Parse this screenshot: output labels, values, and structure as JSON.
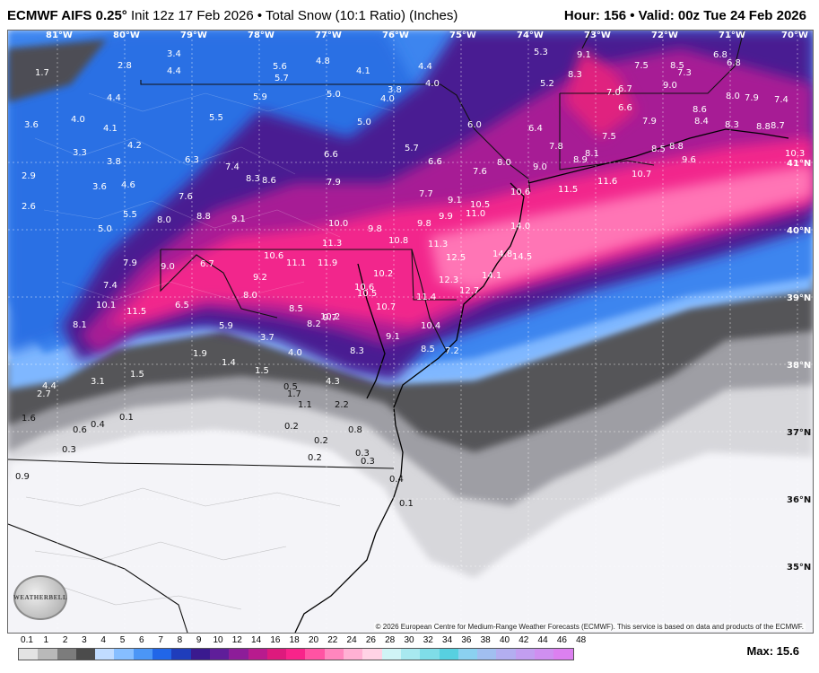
{
  "header": {
    "model": "ECMWF AIFS 0.25°",
    "init": "Init 12z 17 Feb 2026",
    "field": "• Total Snow (10:1 Ratio) (Inches)",
    "hour": "Hour: 156",
    "valid": "• Valid: 00z Tue 24 Feb 2026"
  },
  "longitudes": [
    "81°W",
    "80°W",
    "79°W",
    "78°W",
    "77°W",
    "76°W",
    "75°W",
    "74°W",
    "73°W",
    "72°W",
    "71°W",
    "70°W"
  ],
  "latitudes": [
    "41°N",
    "40°N",
    "39°N",
    "38°N",
    "37°N",
    "36°N",
    "35°N"
  ],
  "labels_light": [
    "1.7",
    "2.8",
    "3.4",
    "4.4",
    "4.4",
    "5.6",
    "5.7",
    "4.8",
    "4.1",
    "4.4",
    "4.0",
    "3.6",
    "4.0",
    "4.1",
    "5.5",
    "5.9",
    "5.0",
    "3.8",
    "4.0",
    "5.0",
    "3.3",
    "4.2",
    "3.8",
    "2.9",
    "3.6",
    "4.6",
    "2.6",
    "5.5",
    "5.0",
    "5.7",
    "6.0",
    "6.4",
    "5.2",
    "5.3",
    "9.1",
    "8.3",
    "7.5",
    "8.5",
    "6.8",
    "6.8",
    "7.3",
    "9.0",
    "7.0",
    "6.7",
    "8.0",
    "7.9",
    "7.4",
    "6.6",
    "7.9",
    "8.6",
    "8.4",
    "8.3",
    "8.8",
    "8.7",
    "10.3",
    "7.5",
    "7.8",
    "8.1",
    "8.9",
    "8.5",
    "8.8",
    "9.6",
    "9.0",
    "8.0",
    "7.6",
    "6.6",
    "6.6",
    "6.3",
    "7.4",
    "8.3",
    "8.6",
    "7.9",
    "7.6",
    "8.8",
    "8.0",
    "9.1",
    "10.0",
    "9.8",
    "9.8",
    "9.9",
    "9.1",
    "10.5",
    "11.0",
    "7.7",
    "10.6",
    "11.5",
    "11.6",
    "10.7",
    "14.0",
    "11.3",
    "10.8",
    "11.3",
    "12.5",
    "14.8",
    "14.5",
    "14.1",
    "12.3",
    "12.7",
    "7.9",
    "9.0",
    "6.7",
    "10.6",
    "11.1",
    "11.9",
    "9.2",
    "10.2",
    "10.6",
    "10.5",
    "8.0",
    "7.4",
    "10.1",
    "11.5",
    "6.5",
    "8.5",
    "8.2",
    "10.2",
    "9.7",
    "10.7",
    "11.4",
    "8.1",
    "5.9",
    "3.7",
    "4.0",
    "8.3",
    "9.1",
    "10.4",
    "8.5",
    "7.2",
    "4.3",
    "1.9",
    "1.4",
    "1.5",
    "1.5",
    "4.4",
    "3.1",
    "2.7"
  ],
  "labels_dark": [
    "0.5",
    "1.7",
    "1.1",
    "2.2",
    "1.6",
    "0.6",
    "0.4",
    "0.1",
    "0.2",
    "0.8",
    "0.2",
    "0.3",
    "0.3",
    "0.2",
    "0.1",
    "0.3",
    "0.9",
    "0.4"
  ],
  "legend": {
    "ticks": [
      "0.1",
      "1",
      "2",
      "3",
      "4",
      "5",
      "6",
      "7",
      "8",
      "9",
      "10",
      "12",
      "14",
      "16",
      "18",
      "20",
      "22",
      "24",
      "26",
      "28",
      "30",
      "32",
      "34",
      "36",
      "38",
      "40",
      "42",
      "44",
      "46",
      "48"
    ],
    "colors": [
      "#e3e3e3",
      "#b9b9b9",
      "#7c7c7c",
      "#4b4b4b",
      "#c1dcff",
      "#86beff",
      "#4b96f6",
      "#2166e8",
      "#1f3dbb",
      "#3a1a8f",
      "#5f1e9a",
      "#8d1d99",
      "#b81b8e",
      "#dd1a7d",
      "#f8238a",
      "#ff53a3",
      "#ff86be",
      "#ffb1d4",
      "#ffd3e5",
      "#d0f4f6",
      "#a8e9f0",
      "#7fdde8",
      "#57d0e0",
      "#8bd1f0",
      "#a1bff0",
      "#b3aef0",
      "#c29ef0",
      "#cf8ff0",
      "#dc80f0"
    ],
    "max": "Max: 15.6"
  },
  "copyright": "© 2026 European Centre for Medium-Range Weather Forecasts (ECMWF). This service is based on data and products of the ECMWF.",
  "logo": "WEATHERBELL"
}
